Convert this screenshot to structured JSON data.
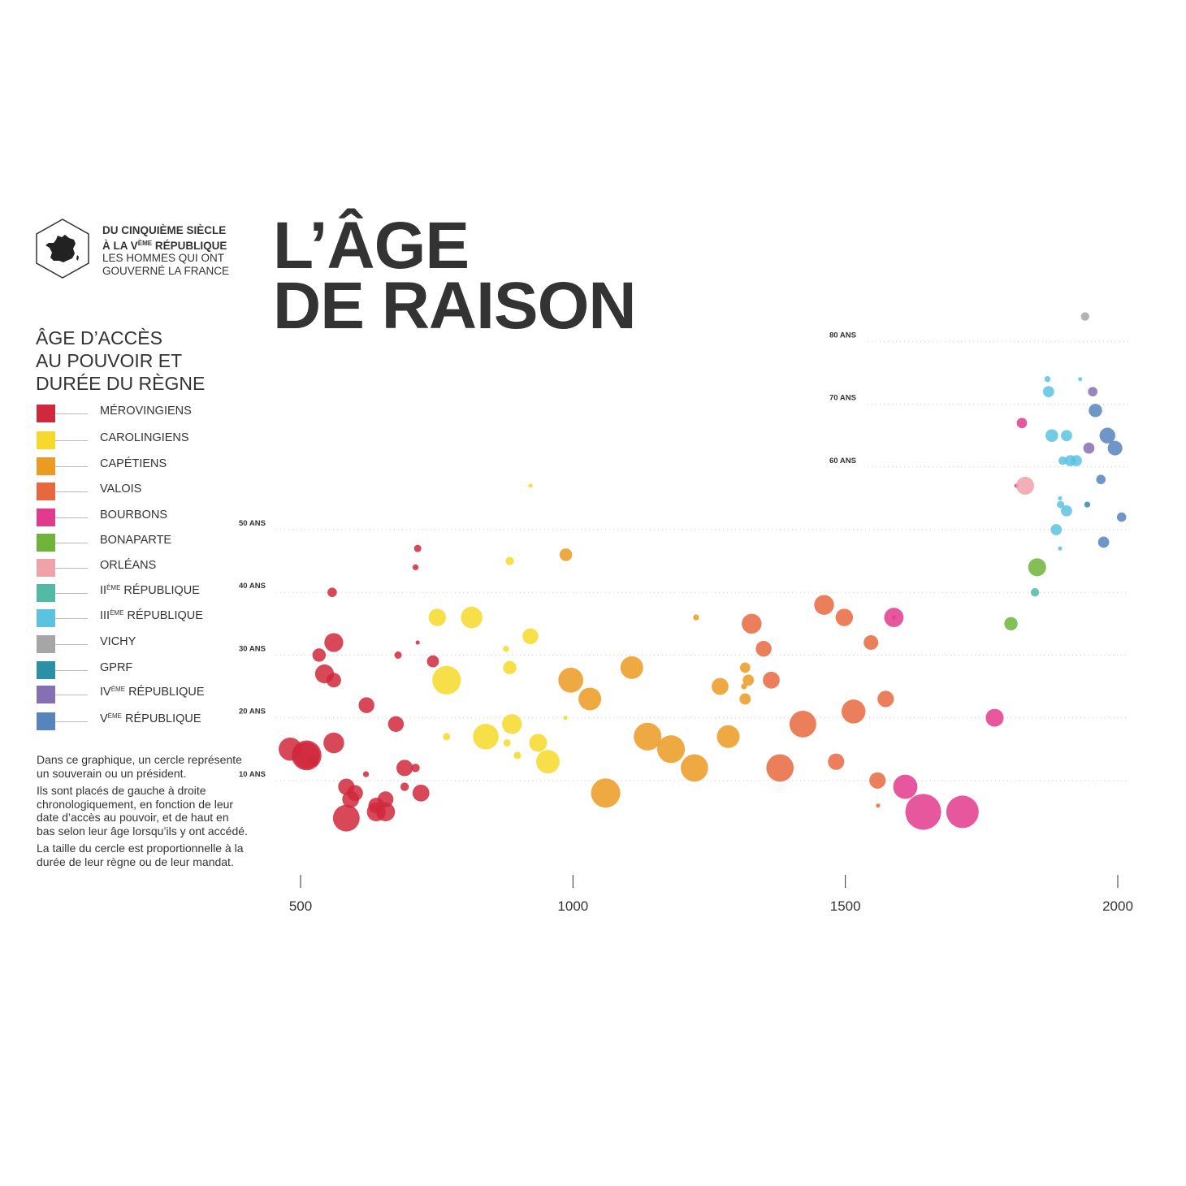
{
  "header": {
    "badge_line1": "DU CINQUIÈME SIÈCLE",
    "badge_line2_pre": "À LA V",
    "badge_line2_sup": "ÈME",
    "badge_line2_post": " RÉPUBLIQUE",
    "badge_line3": "LES HOMMES QUI ONT",
    "badge_line4": "GOUVERNÉ LA FRANCE",
    "badge_icon": "france-map-icon",
    "title_line1": "L’ÂGE",
    "title_line2": "DE RAISON"
  },
  "legend": {
    "title_line1": "ÂGE D’ACCÈS",
    "title_line2": "AU POUVOIR ET",
    "title_line3": "DURÉE DU RÈGNE",
    "items": [
      {
        "label": "MÉROVINGIENS",
        "sup": "",
        "rest": "",
        "color": "#d0283c"
      },
      {
        "label": "CAROLINGIENS",
        "sup": "",
        "rest": "",
        "color": "#f6d92a"
      },
      {
        "label": "CAPÉTIENS",
        "sup": "",
        "rest": "",
        "color": "#ec9a21"
      },
      {
        "label": "VALOIS",
        "sup": "",
        "rest": "",
        "color": "#e8673e"
      },
      {
        "label": "BOURBONS",
        "sup": "",
        "rest": "",
        "color": "#e23a8d"
      },
      {
        "label": "BONAPARTE",
        "sup": "",
        "rest": "",
        "color": "#6fb33a"
      },
      {
        "label": "ORLÉANS",
        "sup": "",
        "rest": "",
        "color": "#f0a2a9"
      },
      {
        "label": "II",
        "sup": "ÈME",
        "rest": " RÉPUBLIQUE",
        "color": "#52b9a5"
      },
      {
        "label": "III",
        "sup": "ÈME",
        "rest": " RÉPUBLIQUE",
        "color": "#5cc2e2"
      },
      {
        "label": "VICHY",
        "sup": "",
        "rest": "",
        "color": "#a6a6a6"
      },
      {
        "label": "GPRF",
        "sup": "",
        "rest": "",
        "color": "#2b8fa7"
      },
      {
        "label": "IV",
        "sup": "ÈME",
        "rest": " RÉPUBLIQUE",
        "color": "#8570b3"
      },
      {
        "label": "V",
        "sup": "ÈME",
        "rest": " RÉPUBLIQUE",
        "color": "#5684bd"
      }
    ]
  },
  "notes": {
    "p1": "Dans ce graphique, un cercle représente un souverain ou un président.",
    "p2": "Ils sont placés de gauche à droite chronologiquement, en fonction de leur date d’accès au pouvoir, et de haut en bas selon leur âge lorsqu’ils y ont accédé.",
    "p3": "La taille du cercle est proportionnelle à la durée de leur règne ou de leur mandat."
  },
  "chart_data": {
    "type": "scatter",
    "title": "L’ÂGE DE RAISON",
    "xlabel": "",
    "ylabel": "",
    "xlim": [
      500,
      2000
    ],
    "ylim": [
      0,
      80
    ],
    "x_ticks": [
      "500",
      "1000",
      "1500",
      "2000"
    ],
    "y_ticks": [
      {
        "value": 10,
        "label": "10 ANS"
      },
      {
        "value": 20,
        "label": "20 ANS"
      },
      {
        "value": 30,
        "label": "30 ANS"
      },
      {
        "value": 40,
        "label": "40 ANS"
      },
      {
        "value": 50,
        "label": "50 ANS"
      },
      {
        "value": 60,
        "label": "60 ANS"
      },
      {
        "value": 70,
        "label": "70 ANS"
      },
      {
        "value": 80,
        "label": "80 ANS"
      }
    ],
    "grid": "horizontal dotted",
    "size_meaning": "duration in years",
    "series": [
      {
        "name": "MÉROVINGIENS",
        "color": "#d0283c",
        "points": [
          [
            481,
            15,
            30
          ],
          [
            511,
            14,
            50
          ],
          [
            511,
            14,
            40
          ],
          [
            524,
            13,
            5
          ],
          [
            534,
            30,
            10
          ],
          [
            544,
            27,
            20
          ],
          [
            558,
            40,
            5
          ],
          [
            561,
            32,
            20
          ],
          [
            561,
            26,
            12
          ],
          [
            561,
            16,
            24
          ],
          [
            584,
            4,
            40
          ],
          [
            584,
            9,
            15
          ],
          [
            592,
            7,
            16
          ],
          [
            600,
            8,
            14
          ],
          [
            620,
            11,
            2
          ],
          [
            621,
            22,
            14
          ],
          [
            639,
            5,
            20
          ],
          [
            639,
            6,
            14
          ],
          [
            656,
            5,
            20
          ],
          [
            656,
            7,
            14
          ],
          [
            675,
            19,
            14
          ],
          [
            679,
            30,
            3
          ],
          [
            691,
            12,
            15
          ],
          [
            691,
            9,
            4
          ],
          [
            711,
            12,
            4
          ],
          [
            711,
            44,
            2
          ],
          [
            715,
            47,
            3
          ],
          [
            715,
            32,
            1
          ],
          [
            721,
            8,
            16
          ],
          [
            743,
            29,
            8
          ]
        ]
      },
      {
        "name": "CAROLINGIENS",
        "color": "#f6d92a",
        "points": [
          [
            751,
            36,
            17
          ],
          [
            768,
            26,
            46
          ],
          [
            768,
            17,
            3
          ],
          [
            814,
            36,
            26
          ],
          [
            840,
            17,
            37
          ],
          [
            877,
            31,
            2
          ],
          [
            879,
            16,
            3
          ],
          [
            884,
            28,
            10
          ],
          [
            884,
            45,
            4
          ],
          [
            888,
            19,
            22
          ],
          [
            898,
            14,
            3
          ],
          [
            922,
            57,
            1
          ],
          [
            922,
            33,
            14
          ],
          [
            936,
            16,
            18
          ],
          [
            954,
            13,
            31
          ],
          [
            986,
            20,
            1
          ]
        ]
      },
      {
        "name": "CAPÉTIENS",
        "color": "#ec9a21",
        "points": [
          [
            987,
            46,
            9
          ],
          [
            996,
            26,
            35
          ],
          [
            1031,
            23,
            29
          ],
          [
            1060,
            8,
            48
          ],
          [
            1108,
            28,
            29
          ],
          [
            1137,
            17,
            43
          ],
          [
            1180,
            15,
            43
          ],
          [
            1223,
            12,
            42
          ],
          [
            1226,
            36,
            2
          ],
          [
            1270,
            25,
            16
          ],
          [
            1285,
            17,
            29
          ],
          [
            1314,
            25,
            2
          ],
          [
            1316,
            28,
            6
          ],
          [
            1316,
            23,
            7
          ],
          [
            1322,
            26,
            7
          ]
        ]
      },
      {
        "name": "VALOIS",
        "color": "#e8673e",
        "points": [
          [
            1328,
            35,
            22
          ],
          [
            1350,
            31,
            14
          ],
          [
            1364,
            26,
            16
          ],
          [
            1380,
            12,
            42
          ],
          [
            1422,
            19,
            40
          ],
          [
            1461,
            38,
            22
          ],
          [
            1483,
            13,
            15
          ],
          [
            1498,
            36,
            17
          ],
          [
            1515,
            21,
            32
          ],
          [
            1547,
            32,
            12
          ],
          [
            1559,
            10,
            15
          ],
          [
            1560,
            6,
            1
          ],
          [
            1574,
            23,
            15
          ],
          [
            1589,
            36,
            1
          ]
        ]
      },
      {
        "name": "BOURBONS",
        "color": "#e23a8d",
        "points": [
          [
            1589,
            36,
            21
          ],
          [
            1610,
            9,
            33
          ],
          [
            1643,
            5,
            72
          ],
          [
            1715,
            5,
            59
          ],
          [
            1774,
            20,
            18
          ],
          [
            1814,
            57,
            1
          ],
          [
            1824,
            67,
            6
          ]
        ]
      },
      {
        "name": "BONAPARTE",
        "color": "#6fb33a",
        "points": [
          [
            1804,
            35,
            10
          ],
          [
            1852,
            44,
            18
          ]
        ]
      },
      {
        "name": "ORLÉANS",
        "color": "#f0a2a9",
        "points": [
          [
            1830,
            57,
            18
          ]
        ]
      },
      {
        "name": "IIÈME RÉPUBLIQUE",
        "color": "#52b9a5",
        "points": [
          [
            1848,
            40,
            4
          ]
        ]
      },
      {
        "name": "IIIÈME RÉPUBLIQUE",
        "color": "#5cc2e2",
        "points": [
          [
            1871,
            74,
            2
          ],
          [
            1873,
            72,
            7
          ],
          [
            1879,
            65,
            9
          ],
          [
            1887,
            50,
            7
          ],
          [
            1894,
            55,
            1
          ],
          [
            1894,
            47,
            1
          ],
          [
            1895,
            54,
            3
          ],
          [
            1899,
            61,
            4
          ],
          [
            1906,
            65,
            7
          ],
          [
            1906,
            53,
            7
          ],
          [
            1913,
            61,
            7
          ],
          [
            1920,
            61,
            1
          ],
          [
            1920,
            61,
            1
          ],
          [
            1924,
            61,
            7
          ],
          [
            1931,
            74,
            1
          ]
        ]
      },
      {
        "name": "VICHY",
        "color": "#a6a6a6",
        "points": [
          [
            1940,
            84,
            4
          ]
        ]
      },
      {
        "name": "GPRF",
        "color": "#2b8fa7",
        "points": [
          [
            1944,
            54,
            2
          ]
        ]
      },
      {
        "name": "IVÈME RÉPUBLIQUE",
        "color": "#8570b3",
        "points": [
          [
            1947,
            63,
            7
          ],
          [
            1954,
            72,
            5
          ]
        ]
      },
      {
        "name": "VÈME RÉPUBLIQUE",
        "color": "#5684bd",
        "points": [
          [
            1959,
            69,
            10
          ],
          [
            1969,
            58,
            5
          ],
          [
            1974,
            48,
            7
          ],
          [
            1981,
            65,
            14
          ],
          [
            1995,
            63,
            12
          ],
          [
            2007,
            52,
            5
          ]
        ]
      }
    ]
  }
}
